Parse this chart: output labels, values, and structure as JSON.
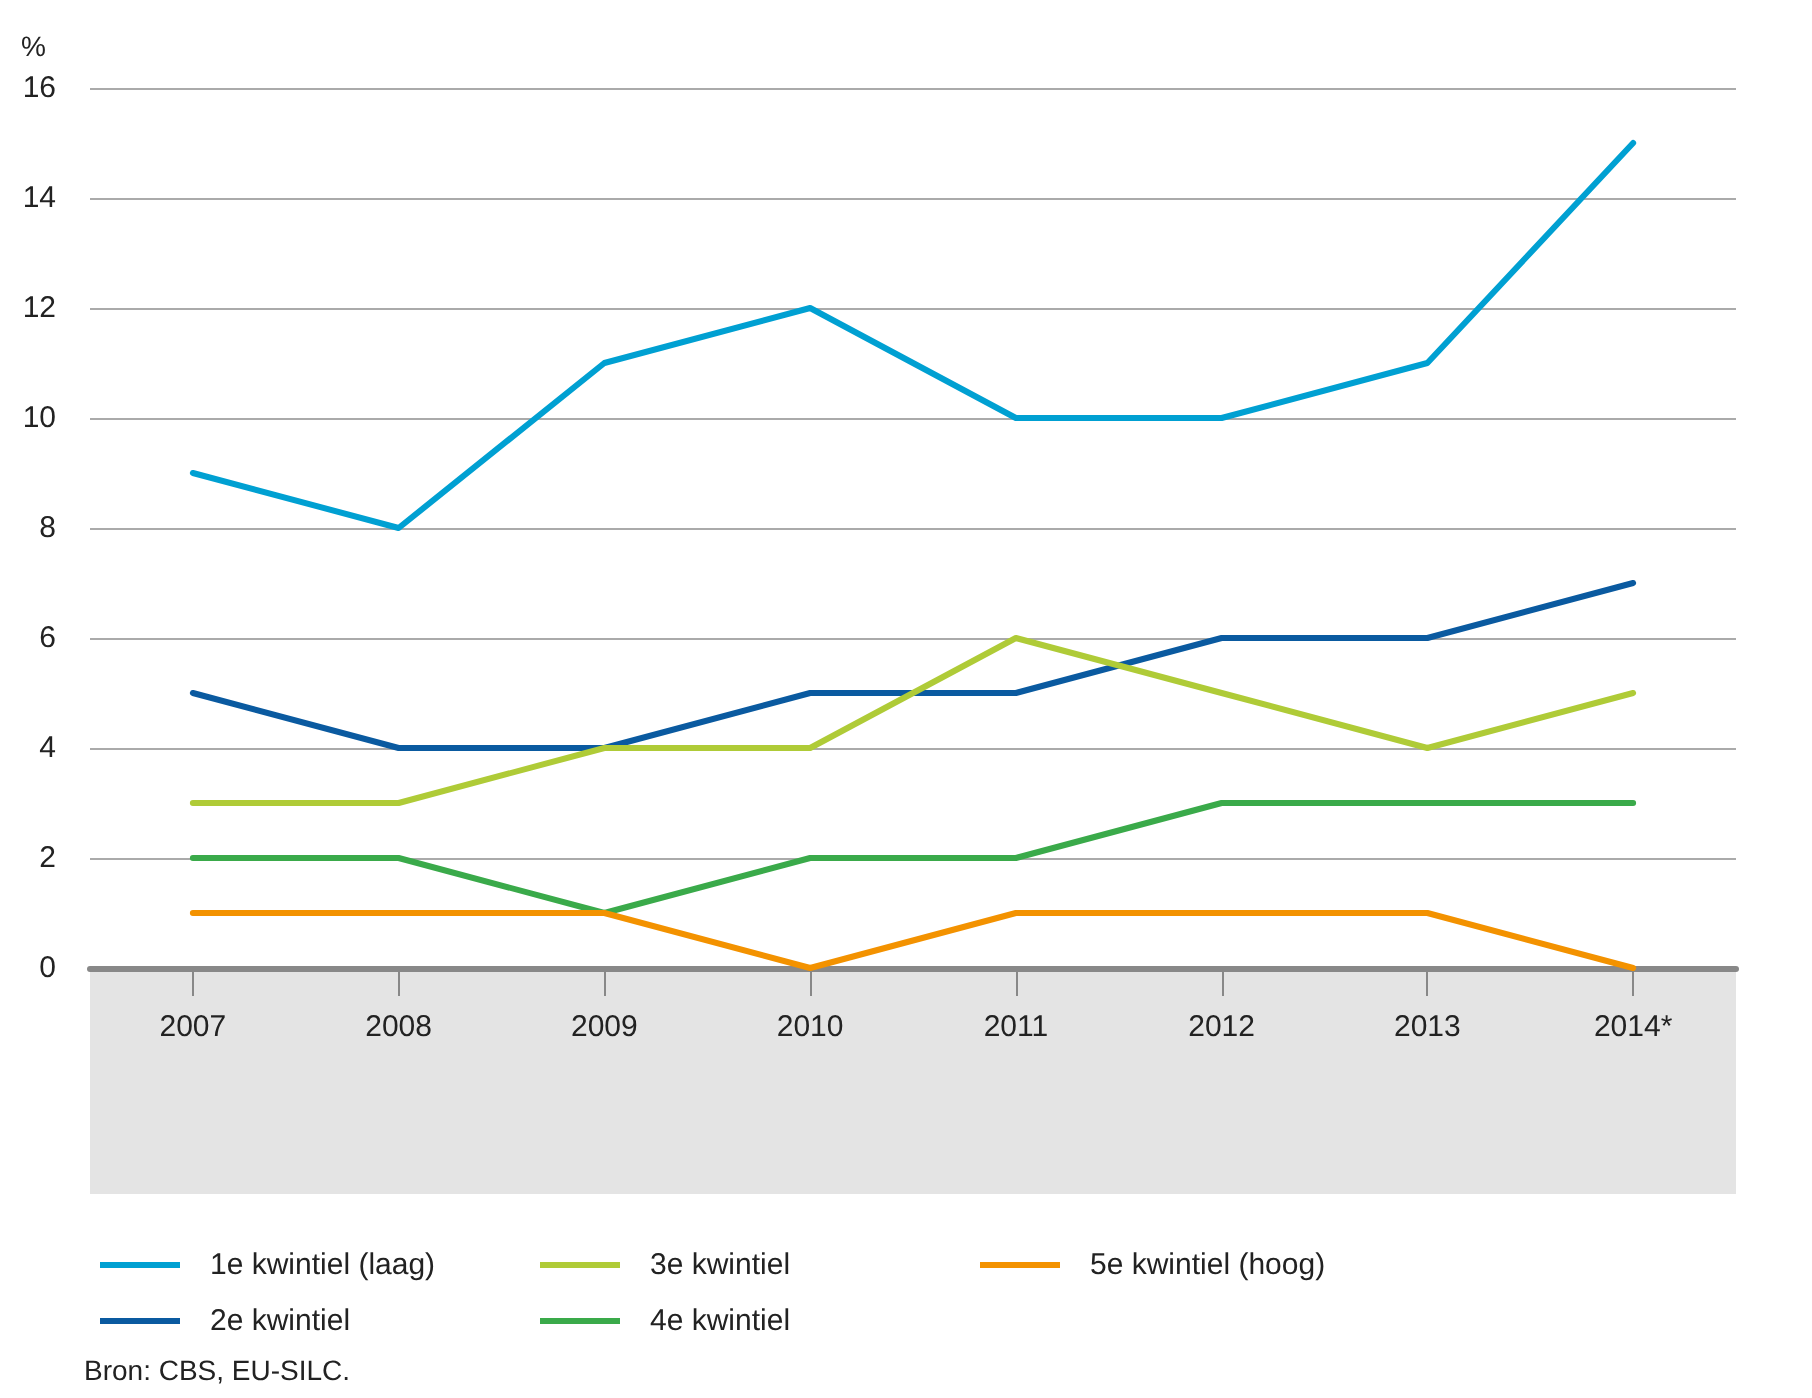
{
  "chart_data": {
    "type": "line",
    "ylabel": "%",
    "categories": [
      "2007",
      "2008",
      "2009",
      "2010",
      "2011",
      "2012",
      "2013",
      "2014*"
    ],
    "series": [
      {
        "name": "1e kwintiel (laag)",
        "color": "#00a0d2",
        "values": [
          9,
          8,
          11,
          12,
          10,
          10,
          11,
          15
        ]
      },
      {
        "name": "2e kwintiel",
        "color": "#0a5aa0",
        "values": [
          5,
          4,
          4,
          5,
          5,
          6,
          6,
          7
        ]
      },
      {
        "name": "3e kwintiel",
        "color": "#afcb37",
        "values": [
          3,
          3,
          4,
          4,
          6,
          5,
          4,
          5
        ]
      },
      {
        "name": "4e kwintiel",
        "color": "#3aaa4a",
        "values": [
          2,
          2,
          1,
          2,
          2,
          3,
          3,
          3
        ]
      },
      {
        "name": "5e kwintiel (hoog)",
        "color": "#f39200",
        "values": [
          1,
          1,
          1,
          0,
          1,
          1,
          1,
          0
        ]
      }
    ],
    "ylim": [
      0,
      16
    ],
    "yticks": [
      0,
      2,
      4,
      6,
      8,
      10,
      12,
      14,
      16
    ],
    "grid": "y",
    "legend": "bottom",
    "marker": "none",
    "line_style": "solid",
    "annotations": [
      "Bron: CBS, EU-SILC."
    ]
  }
}
